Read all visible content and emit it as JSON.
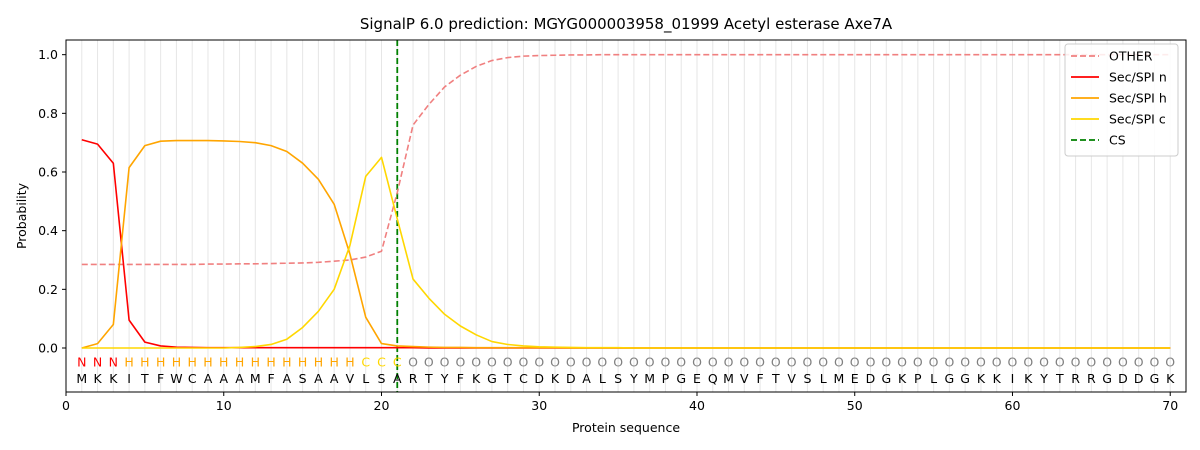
{
  "chart_data": {
    "type": "line",
    "title": "SignalP 6.0 prediction: MGYG000003958_01999 Acetyl esterase Axe7A",
    "xlabel": "Protein sequence",
    "ylabel": "Probability",
    "xlim": [
      0,
      71
    ],
    "ylim": [
      -0.15,
      1.05
    ],
    "x_ticks": [
      0,
      10,
      20,
      30,
      40,
      50,
      60,
      70
    ],
    "y_ticks": [
      "0.0",
      "0.2",
      "0.4",
      "0.6",
      "0.8",
      "1.0"
    ],
    "legend_position": "top-right",
    "sequence": [
      "M",
      "K",
      "K",
      "I",
      "T",
      "F",
      "W",
      "C",
      "A",
      "A",
      "A",
      "M",
      "F",
      "A",
      "S",
      "A",
      "A",
      "V",
      "L",
      "S",
      "A",
      "R",
      "T",
      "Y",
      "F",
      "K",
      "G",
      "T",
      "C",
      "D",
      "K",
      "D",
      "A",
      "L",
      "S",
      "Y",
      "M",
      "P",
      "G",
      "E",
      "Q",
      "M",
      "V",
      "F",
      "T",
      "V",
      "S",
      "L",
      "M",
      "E",
      "D",
      "G",
      "K",
      "P",
      "L",
      "G",
      "G",
      "K",
      "K",
      "I",
      "K",
      "Y",
      "T",
      "R",
      "R",
      "G",
      "D",
      "D",
      "G",
      "K"
    ],
    "labels": [
      "N",
      "N",
      "N",
      "H",
      "H",
      "H",
      "H",
      "H",
      "H",
      "H",
      "H",
      "H",
      "H",
      "H",
      "H",
      "H",
      "H",
      "H",
      "C",
      "C",
      "C",
      "O",
      "O",
      "O",
      "O",
      "O",
      "O",
      "O",
      "O",
      "O",
      "O",
      "O",
      "O",
      "O",
      "O",
      "O",
      "O",
      "O",
      "O",
      "O",
      "O",
      "O",
      "O",
      "O",
      "O",
      "O",
      "O",
      "O",
      "O",
      "O",
      "O",
      "O",
      "O",
      "O",
      "O",
      "O",
      "O",
      "O",
      "O",
      "O",
      "O",
      "O",
      "O",
      "O",
      "O",
      "O",
      "O",
      "O",
      "O",
      "O"
    ],
    "label_colors": {
      "N": "#ff0000",
      "H": "#ffa500",
      "C": "#ffd700",
      "O": "#808080"
    },
    "series": [
      {
        "name": "OTHER",
        "color": "#f08080",
        "dash": true,
        "values": [
          0.285,
          0.285,
          0.285,
          0.285,
          0.285,
          0.285,
          0.285,
          0.285,
          0.286,
          0.286,
          0.287,
          0.287,
          0.288,
          0.289,
          0.29,
          0.292,
          0.296,
          0.3,
          0.31,
          0.33,
          0.53,
          0.76,
          0.83,
          0.89,
          0.93,
          0.96,
          0.98,
          0.99,
          0.995,
          0.997,
          0.998,
          0.999,
          0.999,
          1.0,
          1.0,
          1.0,
          1.0,
          1.0,
          1.0,
          1.0,
          1.0,
          1.0,
          1.0,
          1.0,
          1.0,
          1.0,
          1.0,
          1.0,
          1.0,
          1.0,
          1.0,
          1.0,
          1.0,
          1.0,
          1.0,
          1.0,
          1.0,
          1.0,
          1.0,
          1.0,
          1.0,
          1.0,
          1.0,
          1.0,
          1.0,
          1.0,
          1.0,
          1.0,
          1.0,
          1.0
        ]
      },
      {
        "name": "Sec/SPI n",
        "color": "#ff0000",
        "dash": false,
        "values": [
          0.71,
          0.695,
          0.63,
          0.095,
          0.02,
          0.007,
          0.003,
          0.002,
          0.001,
          0.001,
          0.001,
          0.001,
          0.001,
          0.001,
          0.001,
          0.001,
          0.001,
          0.001,
          0.001,
          0.001,
          0.001,
          0.001,
          0.0,
          0.0,
          0.0,
          0.0,
          0.0,
          0.0,
          0.0,
          0.0,
          0.0,
          0.0,
          0.0,
          0.0,
          0.0,
          0.0,
          0.0,
          0.0,
          0.0,
          0.0,
          0.0,
          0.0,
          0.0,
          0.0,
          0.0,
          0.0,
          0.0,
          0.0,
          0.0,
          0.0,
          0.0,
          0.0,
          0.0,
          0.0,
          0.0,
          0.0,
          0.0,
          0.0,
          0.0,
          0.0,
          0.0,
          0.0,
          0.0,
          0.0,
          0.0,
          0.0,
          0.0,
          0.0,
          0.0,
          0.0
        ]
      },
      {
        "name": "Sec/SPI h",
        "color": "#ffa500",
        "dash": false,
        "values": [
          0.0,
          0.015,
          0.08,
          0.615,
          0.69,
          0.705,
          0.707,
          0.707,
          0.707,
          0.706,
          0.704,
          0.7,
          0.69,
          0.67,
          0.63,
          0.575,
          0.49,
          0.32,
          0.105,
          0.015,
          0.007,
          0.005,
          0.003,
          0.002,
          0.002,
          0.001,
          0.001,
          0.001,
          0.001,
          0.001,
          0.001,
          0.0,
          0.0,
          0.0,
          0.0,
          0.0,
          0.0,
          0.0,
          0.0,
          0.0,
          0.0,
          0.0,
          0.0,
          0.0,
          0.0,
          0.0,
          0.0,
          0.0,
          0.0,
          0.0,
          0.0,
          0.0,
          0.0,
          0.0,
          0.0,
          0.0,
          0.0,
          0.0,
          0.0,
          0.0,
          0.0,
          0.0,
          0.0,
          0.0,
          0.0,
          0.0,
          0.0,
          0.0,
          0.0,
          0.0
        ]
      },
      {
        "name": "Sec/SPI c",
        "color": "#ffd700",
        "dash": false,
        "values": [
          0.0,
          0.0,
          0.0,
          0.0,
          0.0,
          0.0,
          0.0,
          0.0,
          0.0,
          0.0,
          0.002,
          0.005,
          0.012,
          0.03,
          0.07,
          0.125,
          0.2,
          0.35,
          0.585,
          0.65,
          0.44,
          0.235,
          0.17,
          0.115,
          0.075,
          0.045,
          0.022,
          0.012,
          0.007,
          0.004,
          0.003,
          0.002,
          0.001,
          0.001,
          0.001,
          0.0,
          0.0,
          0.0,
          0.0,
          0.0,
          0.0,
          0.0,
          0.0,
          0.0,
          0.0,
          0.0,
          0.0,
          0.0,
          0.0,
          0.0,
          0.0,
          0.0,
          0.0,
          0.0,
          0.0,
          0.0,
          0.0,
          0.0,
          0.0,
          0.0,
          0.0,
          0.0,
          0.0,
          0.0,
          0.0,
          0.0,
          0.0,
          0.0,
          0.0,
          0.0
        ]
      }
    ],
    "cs": {
      "name": "CS",
      "x": 21,
      "color": "#008000"
    }
  }
}
